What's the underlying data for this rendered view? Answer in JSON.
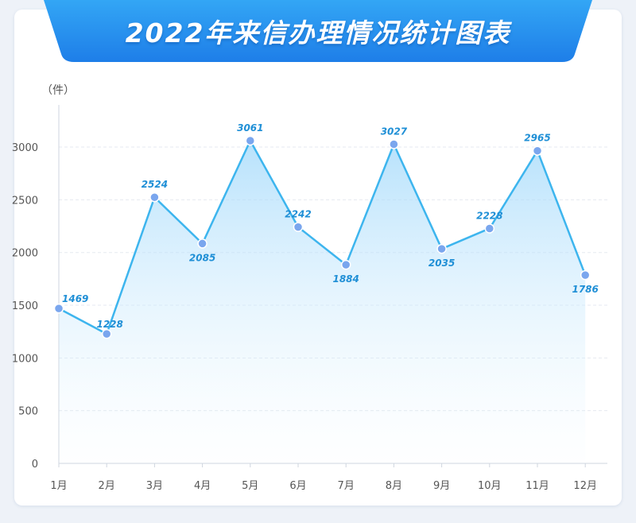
{
  "header": {
    "title": "2022年来信办理情况统计图表"
  },
  "chart_data": {
    "type": "area",
    "title": "2022年来信办理情况统计图表",
    "ylabel": "（件）",
    "categories": [
      "1月",
      "2月",
      "3月",
      "4月",
      "5月",
      "6月",
      "7月",
      "8月",
      "9月",
      "10月",
      "11月",
      "12月"
    ],
    "series": [
      {
        "values": [
          1469,
          1228,
          2524,
          2085,
          3061,
          2242,
          1884,
          3027,
          2035,
          2228,
          2965,
          1786
        ]
      }
    ],
    "ylim": [
      0,
      3400
    ],
    "yticks": [
      0,
      500,
      1000,
      1500,
      2000,
      2500,
      3000
    ],
    "grid": true,
    "colors": {
      "line": "#3db5ee",
      "point": "#7aa6ee",
      "label": "#1f8fd6",
      "banner": "#2f8ff0"
    }
  }
}
